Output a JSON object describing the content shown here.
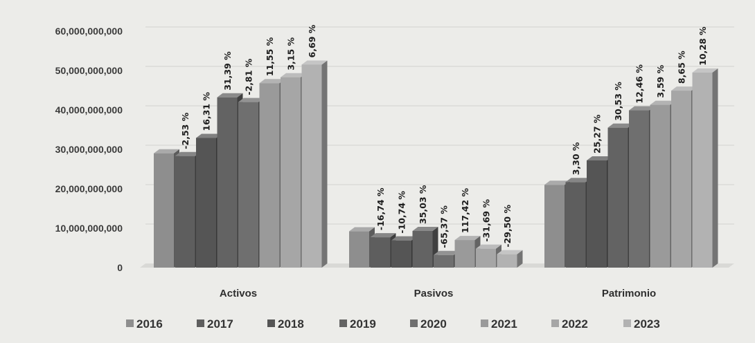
{
  "chart_data": {
    "type": "bar",
    "categories": [
      "Activos",
      "Pasivos",
      "Patrimonio"
    ],
    "y_ticks": [
      "0",
      "10,000,000,000",
      "20,000,000,000",
      "30,000,000,000",
      "40,000,000,000",
      "50,000,000,000",
      "60,000,000,000"
    ],
    "ylim": [
      0,
      60000000000
    ],
    "grid": true,
    "legend_position": "bottom",
    "series": [
      {
        "name": "2016",
        "color": "#8e8e8e",
        "values": [
          29000000000,
          9200000000,
          21000000000
        ],
        "labels": [
          "",
          "",
          ""
        ]
      },
      {
        "name": "2017",
        "color": "#5e5e5e",
        "values": [
          28300000000,
          7700000000,
          21700000000
        ],
        "labels": [
          "-2,53 %",
          "-16,74 %",
          "3,30 %"
        ]
      },
      {
        "name": "2018",
        "color": "#555555",
        "values": [
          32900000000,
          6900000000,
          27200000000
        ],
        "labels": [
          "16,31 %",
          "-10,74 %",
          "25,27 %"
        ]
      },
      {
        "name": "2019",
        "color": "#636363",
        "values": [
          43200000000,
          9300000000,
          35500000000
        ],
        "labels": [
          "31,39 %",
          "35,03 %",
          "30,53 %"
        ]
      },
      {
        "name": "2020",
        "color": "#6f6f6f",
        "values": [
          42000000000,
          3200000000,
          39900000000
        ],
        "labels": [
          "-2,81 %",
          "-65,37 %",
          "12,46 %"
        ]
      },
      {
        "name": "2021",
        "color": "#9a9a9a",
        "values": [
          46800000000,
          7000000000,
          41300000000
        ],
        "labels": [
          "11,55 %",
          "117,42 %",
          "3,59 %"
        ]
      },
      {
        "name": "2022",
        "color": "#a6a6a6",
        "values": [
          48300000000,
          4800000000,
          44900000000
        ],
        "labels": [
          "3,15 %",
          "-31,69 %",
          "8,65 %"
        ]
      },
      {
        "name": "2023",
        "color": "#b2b2b2",
        "values": [
          51500000000,
          3400000000,
          49500000000
        ],
        "labels": [
          "6,69 %",
          "-29,50 %",
          "10,28 %"
        ]
      }
    ]
  }
}
